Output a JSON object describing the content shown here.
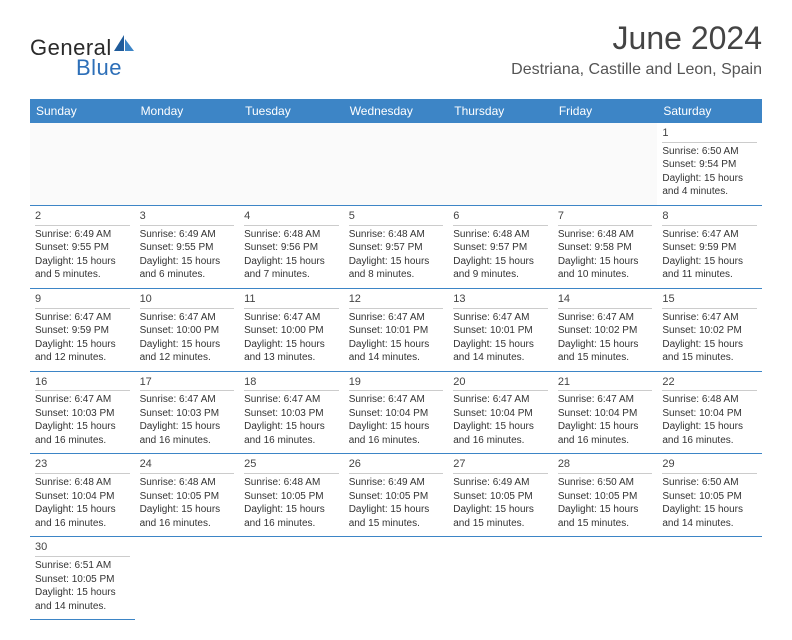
{
  "logo": {
    "part1": "General",
    "part2": "Blue"
  },
  "title": "June 2024",
  "location": "Destriana, Castille and Leon, Spain",
  "colors": {
    "header_bg": "#3d85c6",
    "header_text": "#ffffff",
    "row_border": "#3d85c6",
    "day_divider": "#cccccc",
    "logo_blue": "#2d6fb8",
    "text": "#333333"
  },
  "typography": {
    "title_fontsize": 32,
    "location_fontsize": 16,
    "dayheader_fontsize": 12,
    "daynum_fontsize": 11,
    "detail_fontsize": 10
  },
  "day_headers": [
    "Sunday",
    "Monday",
    "Tuesday",
    "Wednesday",
    "Thursday",
    "Friday",
    "Saturday"
  ],
  "weeks": [
    [
      {
        "day": "",
        "sunrise": "",
        "sunset": "",
        "daylight": ""
      },
      {
        "day": "",
        "sunrise": "",
        "sunset": "",
        "daylight": ""
      },
      {
        "day": "",
        "sunrise": "",
        "sunset": "",
        "daylight": ""
      },
      {
        "day": "",
        "sunrise": "",
        "sunset": "",
        "daylight": ""
      },
      {
        "day": "",
        "sunrise": "",
        "sunset": "",
        "daylight": ""
      },
      {
        "day": "",
        "sunrise": "",
        "sunset": "",
        "daylight": ""
      },
      {
        "day": "1",
        "sunrise": "Sunrise: 6:50 AM",
        "sunset": "Sunset: 9:54 PM",
        "daylight": "Daylight: 15 hours and 4 minutes."
      }
    ],
    [
      {
        "day": "2",
        "sunrise": "Sunrise: 6:49 AM",
        "sunset": "Sunset: 9:55 PM",
        "daylight": "Daylight: 15 hours and 5 minutes."
      },
      {
        "day": "3",
        "sunrise": "Sunrise: 6:49 AM",
        "sunset": "Sunset: 9:55 PM",
        "daylight": "Daylight: 15 hours and 6 minutes."
      },
      {
        "day": "4",
        "sunrise": "Sunrise: 6:48 AM",
        "sunset": "Sunset: 9:56 PM",
        "daylight": "Daylight: 15 hours and 7 minutes."
      },
      {
        "day": "5",
        "sunrise": "Sunrise: 6:48 AM",
        "sunset": "Sunset: 9:57 PM",
        "daylight": "Daylight: 15 hours and 8 minutes."
      },
      {
        "day": "6",
        "sunrise": "Sunrise: 6:48 AM",
        "sunset": "Sunset: 9:57 PM",
        "daylight": "Daylight: 15 hours and 9 minutes."
      },
      {
        "day": "7",
        "sunrise": "Sunrise: 6:48 AM",
        "sunset": "Sunset: 9:58 PM",
        "daylight": "Daylight: 15 hours and 10 minutes."
      },
      {
        "day": "8",
        "sunrise": "Sunrise: 6:47 AM",
        "sunset": "Sunset: 9:59 PM",
        "daylight": "Daylight: 15 hours and 11 minutes."
      }
    ],
    [
      {
        "day": "9",
        "sunrise": "Sunrise: 6:47 AM",
        "sunset": "Sunset: 9:59 PM",
        "daylight": "Daylight: 15 hours and 12 minutes."
      },
      {
        "day": "10",
        "sunrise": "Sunrise: 6:47 AM",
        "sunset": "Sunset: 10:00 PM",
        "daylight": "Daylight: 15 hours and 12 minutes."
      },
      {
        "day": "11",
        "sunrise": "Sunrise: 6:47 AM",
        "sunset": "Sunset: 10:00 PM",
        "daylight": "Daylight: 15 hours and 13 minutes."
      },
      {
        "day": "12",
        "sunrise": "Sunrise: 6:47 AM",
        "sunset": "Sunset: 10:01 PM",
        "daylight": "Daylight: 15 hours and 14 minutes."
      },
      {
        "day": "13",
        "sunrise": "Sunrise: 6:47 AM",
        "sunset": "Sunset: 10:01 PM",
        "daylight": "Daylight: 15 hours and 14 minutes."
      },
      {
        "day": "14",
        "sunrise": "Sunrise: 6:47 AM",
        "sunset": "Sunset: 10:02 PM",
        "daylight": "Daylight: 15 hours and 15 minutes."
      },
      {
        "day": "15",
        "sunrise": "Sunrise: 6:47 AM",
        "sunset": "Sunset: 10:02 PM",
        "daylight": "Daylight: 15 hours and 15 minutes."
      }
    ],
    [
      {
        "day": "16",
        "sunrise": "Sunrise: 6:47 AM",
        "sunset": "Sunset: 10:03 PM",
        "daylight": "Daylight: 15 hours and 16 minutes."
      },
      {
        "day": "17",
        "sunrise": "Sunrise: 6:47 AM",
        "sunset": "Sunset: 10:03 PM",
        "daylight": "Daylight: 15 hours and 16 minutes."
      },
      {
        "day": "18",
        "sunrise": "Sunrise: 6:47 AM",
        "sunset": "Sunset: 10:03 PM",
        "daylight": "Daylight: 15 hours and 16 minutes."
      },
      {
        "day": "19",
        "sunrise": "Sunrise: 6:47 AM",
        "sunset": "Sunset: 10:04 PM",
        "daylight": "Daylight: 15 hours and 16 minutes."
      },
      {
        "day": "20",
        "sunrise": "Sunrise: 6:47 AM",
        "sunset": "Sunset: 10:04 PM",
        "daylight": "Daylight: 15 hours and 16 minutes."
      },
      {
        "day": "21",
        "sunrise": "Sunrise: 6:47 AM",
        "sunset": "Sunset: 10:04 PM",
        "daylight": "Daylight: 15 hours and 16 minutes."
      },
      {
        "day": "22",
        "sunrise": "Sunrise: 6:48 AM",
        "sunset": "Sunset: 10:04 PM",
        "daylight": "Daylight: 15 hours and 16 minutes."
      }
    ],
    [
      {
        "day": "23",
        "sunrise": "Sunrise: 6:48 AM",
        "sunset": "Sunset: 10:04 PM",
        "daylight": "Daylight: 15 hours and 16 minutes."
      },
      {
        "day": "24",
        "sunrise": "Sunrise: 6:48 AM",
        "sunset": "Sunset: 10:05 PM",
        "daylight": "Daylight: 15 hours and 16 minutes."
      },
      {
        "day": "25",
        "sunrise": "Sunrise: 6:48 AM",
        "sunset": "Sunset: 10:05 PM",
        "daylight": "Daylight: 15 hours and 16 minutes."
      },
      {
        "day": "26",
        "sunrise": "Sunrise: 6:49 AM",
        "sunset": "Sunset: 10:05 PM",
        "daylight": "Daylight: 15 hours and 15 minutes."
      },
      {
        "day": "27",
        "sunrise": "Sunrise: 6:49 AM",
        "sunset": "Sunset: 10:05 PM",
        "daylight": "Daylight: 15 hours and 15 minutes."
      },
      {
        "day": "28",
        "sunrise": "Sunrise: 6:50 AM",
        "sunset": "Sunset: 10:05 PM",
        "daylight": "Daylight: 15 hours and 15 minutes."
      },
      {
        "day": "29",
        "sunrise": "Sunrise: 6:50 AM",
        "sunset": "Sunset: 10:05 PM",
        "daylight": "Daylight: 15 hours and 14 minutes."
      }
    ],
    [
      {
        "day": "30",
        "sunrise": "Sunrise: 6:51 AM",
        "sunset": "Sunset: 10:05 PM",
        "daylight": "Daylight: 15 hours and 14 minutes."
      },
      {
        "day": "",
        "sunrise": "",
        "sunset": "",
        "daylight": ""
      },
      {
        "day": "",
        "sunrise": "",
        "sunset": "",
        "daylight": ""
      },
      {
        "day": "",
        "sunrise": "",
        "sunset": "",
        "daylight": ""
      },
      {
        "day": "",
        "sunrise": "",
        "sunset": "",
        "daylight": ""
      },
      {
        "day": "",
        "sunrise": "",
        "sunset": "",
        "daylight": ""
      },
      {
        "day": "",
        "sunrise": "",
        "sunset": "",
        "daylight": ""
      }
    ]
  ]
}
